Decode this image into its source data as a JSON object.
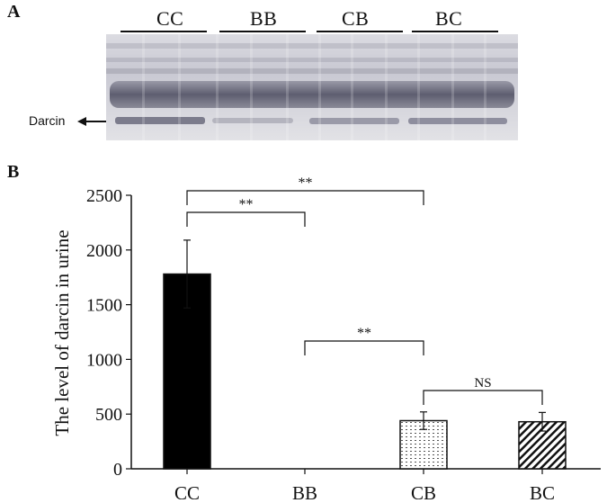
{
  "panel_a": {
    "label": "A",
    "lanes": [
      "CC",
      "BB",
      "CB",
      "BC"
    ],
    "marker_label": "Darcin"
  },
  "panel_b": {
    "label": "B"
  },
  "chart_data": {
    "type": "bar",
    "categories": [
      "CC",
      "BB",
      "CB",
      "BC"
    ],
    "values": [
      1780,
      0,
      440,
      430
    ],
    "errors": [
      310,
      0,
      80,
      85
    ],
    "bar_fills": [
      "solid-black",
      "none",
      "dotted",
      "hatched"
    ],
    "ylabel": "The level of darcin in urine",
    "ylim": [
      0,
      2500
    ],
    "yticks": [
      "0",
      "500",
      "1000",
      "1500",
      "2000",
      "2500"
    ],
    "significance": [
      {
        "from": "CC",
        "to": "BB",
        "label": "**"
      },
      {
        "from": "CC",
        "to": "CB",
        "label": "**"
      },
      {
        "from": "BB",
        "to": "CB",
        "label": "**"
      },
      {
        "from": "CB",
        "to": "BC",
        "label": "NS"
      }
    ],
    "colors": {
      "bar_solid": "#000000",
      "axis": "#111111"
    }
  }
}
